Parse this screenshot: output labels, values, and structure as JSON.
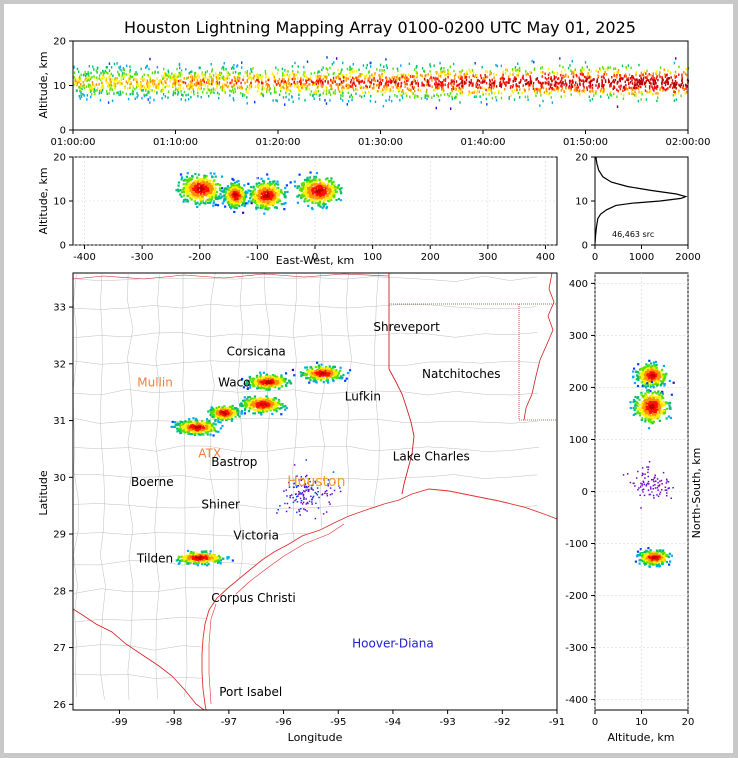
{
  "chart_data": [
    {
      "name": "altitude-time",
      "type": "heatmap",
      "title": "Houston Lightning Mapping Array 0100-0200 UTC May 01, 2025",
      "ylabel": "Altitude, km",
      "ylim": [
        0,
        20
      ],
      "yticks": [
        "0",
        "10",
        "20"
      ],
      "xticks": [
        "01:00:00",
        "01:10:00",
        "01:20:00",
        "01:30:00",
        "01:40:00",
        "01:50:00",
        "02:00:00"
      ],
      "band": {
        "center_km": 11,
        "spread_km": 3.5
      }
    },
    {
      "name": "altitude-eastwest",
      "type": "heatmap",
      "xlabel": "East-West, km",
      "ylabel": "Altitude, km",
      "xlim": [
        -420,
        420
      ],
      "ylim": [
        0,
        20
      ],
      "xticks": [
        -400,
        -300,
        -200,
        -100,
        0,
        100,
        200,
        300,
        400
      ],
      "yticks": [
        0,
        10,
        20
      ],
      "clusters": [
        {
          "x": -200,
          "y": 13,
          "sx": 35,
          "sy": 3
        },
        {
          "x": -140,
          "y": 11.5,
          "sx": 18,
          "sy": 2.5
        },
        {
          "x": -85,
          "y": 11.5,
          "sx": 28,
          "sy": 3
        },
        {
          "x": 5,
          "y": 12.5,
          "sx": 35,
          "sy": 3
        }
      ]
    },
    {
      "name": "altitude-histogram",
      "type": "line",
      "xlim": [
        0,
        2000
      ],
      "ylim": [
        0,
        20
      ],
      "xticks": [
        0,
        1000,
        2000
      ],
      "yticks": [
        0,
        10,
        20
      ],
      "annotation": "46,463 src",
      "points": [
        [
          2,
          0.5
        ],
        [
          10,
          2
        ],
        [
          30,
          4
        ],
        [
          60,
          6
        ],
        [
          120,
          7
        ],
        [
          250,
          8
        ],
        [
          450,
          9
        ],
        [
          800,
          9.5
        ],
        [
          1400,
          10
        ],
        [
          1850,
          10.6
        ],
        [
          1950,
          11
        ],
        [
          1750,
          11.6
        ],
        [
          1200,
          12.4
        ],
        [
          700,
          13.3
        ],
        [
          350,
          14.3
        ],
        [
          170,
          15.5
        ],
        [
          80,
          17
        ],
        [
          40,
          18.5
        ],
        [
          20,
          20
        ]
      ]
    },
    {
      "name": "map",
      "type": "scatter",
      "xlabel": "Longitude",
      "ylabel": "Latitude",
      "xlim": [
        -99.85,
        -91
      ],
      "ylim": [
        25.9,
        33.6
      ],
      "xticks": [
        -99,
        -98,
        -97,
        -96,
        -95,
        -94,
        -93,
        -92,
        -91
      ],
      "yticks": [
        26,
        27,
        28,
        29,
        30,
        31,
        32,
        33
      ],
      "places": [
        {
          "name": "Shreveport",
          "lon": -93.75,
          "lat": 32.58,
          "color": "#000000"
        },
        {
          "name": "Corsicana",
          "lon": -96.5,
          "lat": 32.15,
          "color": "#000000"
        },
        {
          "name": "Mullin",
          "lon": -98.35,
          "lat": 31.6,
          "color": "#f08040"
        },
        {
          "name": "Waco",
          "lon": -96.9,
          "lat": 31.6,
          "color": "#000000"
        },
        {
          "name": "Natchitoches",
          "lon": -92.75,
          "lat": 31.75,
          "color": "#000000"
        },
        {
          "name": "Lufkin",
          "lon": -94.55,
          "lat": 31.35,
          "color": "#000000"
        },
        {
          "name": "ATX",
          "lon": -97.35,
          "lat": 30.35,
          "color": "#f08040"
        },
        {
          "name": "Bastrop",
          "lon": -96.9,
          "lat": 30.2,
          "color": "#000000"
        },
        {
          "name": "Lake Charles",
          "lon": -93.3,
          "lat": 30.3,
          "color": "#000000"
        },
        {
          "name": "Boerne",
          "lon": -98.4,
          "lat": 29.85,
          "color": "#000000"
        },
        {
          "name": "Houston",
          "lon": -95.4,
          "lat": 29.85,
          "color": "#f0a020"
        },
        {
          "name": "Shiner",
          "lon": -97.15,
          "lat": 29.45,
          "color": "#000000"
        },
        {
          "name": "Victoria",
          "lon": -96.5,
          "lat": 28.9,
          "color": "#000000"
        },
        {
          "name": "Tilden",
          "lon": -98.35,
          "lat": 28.5,
          "color": "#000000"
        },
        {
          "name": "Corpus Christi",
          "lon": -96.55,
          "lat": 27.8,
          "color": "#000000"
        },
        {
          "name": "Hoover-Diana",
          "lon": -94.0,
          "lat": 27.0,
          "color": "#2020d0"
        },
        {
          "name": "Port Isabel",
          "lon": -96.6,
          "lat": 26.15,
          "color": "#000000"
        }
      ],
      "storms": [
        {
          "lon": -97.6,
          "lat": 30.9,
          "slon": 0.35,
          "slat": 0.12
        },
        {
          "lon": -97.1,
          "lat": 31.15,
          "slon": 0.25,
          "slat": 0.12
        },
        {
          "lon": -96.4,
          "lat": 31.3,
          "slon": 0.35,
          "slat": 0.14
        },
        {
          "lon": -96.3,
          "lat": 31.7,
          "slon": 0.35,
          "slat": 0.12
        },
        {
          "lon": -95.3,
          "lat": 31.85,
          "slon": 0.35,
          "slat": 0.12
        },
        {
          "lon": -97.55,
          "lat": 28.6,
          "slon": 0.4,
          "slat": 0.1
        }
      ]
    },
    {
      "name": "northsouth-altitude",
      "type": "heatmap",
      "xlabel": "Altitude, km",
      "ylabel": "North-South, km",
      "xlim": [
        0,
        20
      ],
      "ylim": [
        -420,
        420
      ],
      "xticks": [
        0,
        10,
        20
      ],
      "yticks": [
        -400,
        -300,
        -200,
        -100,
        0,
        100,
        200,
        300,
        400
      ],
      "clusters": [
        {
          "x": 12,
          "y": 225,
          "sx": 3,
          "sy": 20
        },
        {
          "x": 12,
          "y": 165,
          "sx": 3.5,
          "sy": 30
        },
        {
          "x": 12.5,
          "y": -125,
          "sx": 3,
          "sy": 13
        }
      ]
    }
  ]
}
